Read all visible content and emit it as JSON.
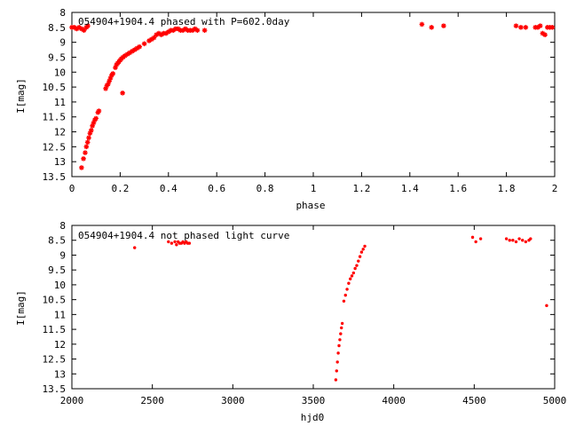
{
  "chart_data": [
    {
      "type": "scatter",
      "title": "054904+1904.4 phased with P=602.0day",
      "xlabel": "phase",
      "ylabel": "I[mag]",
      "xlim": [
        0,
        2
      ],
      "ylim": [
        13.5,
        8
      ],
      "y_inverted": true,
      "grid": false,
      "legend": "none",
      "marker": "asterisk",
      "color": "#ff0000",
      "xticks": [
        "0",
        "0.2",
        "0.4",
        "0.6",
        "0.8",
        "1",
        "1.2",
        "1.4",
        "1.6",
        "1.8",
        "2"
      ],
      "yticks": [
        "8",
        "8.5",
        "9",
        "9.5",
        "10",
        "10.5",
        "11",
        "11.5",
        "12",
        "12.5",
        "13",
        "13.5"
      ],
      "series": [
        {
          "x": [
            0.0,
            0.01,
            0.02,
            0.03,
            0.04,
            0.05,
            0.06,
            0.066,
            0.04,
            0.048,
            0.055,
            0.06,
            0.065,
            0.07,
            0.075,
            0.08,
            0.085,
            0.09,
            0.095,
            0.1,
            0.108,
            0.112,
            0.14,
            0.145,
            0.15,
            0.155,
            0.16,
            0.165,
            0.17,
            0.18,
            0.185,
            0.19,
            0.195,
            0.2,
            0.205,
            0.21,
            0.212,
            0.22,
            0.23,
            0.24,
            0.25,
            0.26,
            0.27,
            0.28,
            0.3,
            0.32,
            0.33,
            0.34,
            0.35,
            0.36,
            0.37,
            0.38,
            0.39,
            0.4,
            0.41,
            0.42,
            0.43,
            0.44,
            0.45,
            0.46,
            0.47,
            0.48,
            0.49,
            0.5,
            0.51,
            0.52,
            0.55,
            1.45,
            1.49,
            1.54,
            1.84,
            1.86,
            1.88,
            1.92,
            1.93,
            1.94,
            1.95,
            1.96,
            1.97,
            1.98,
            1.99
          ],
          "y": [
            8.5,
            8.5,
            8.55,
            8.5,
            8.55,
            8.6,
            8.5,
            8.45,
            13.2,
            12.9,
            12.7,
            12.5,
            12.35,
            12.2,
            12.05,
            11.95,
            11.8,
            11.7,
            11.6,
            11.55,
            11.35,
            11.3,
            10.55,
            10.45,
            10.4,
            10.3,
            10.2,
            10.1,
            10.05,
            9.85,
            9.75,
            9.7,
            9.65,
            9.6,
            9.55,
            10.7,
            9.5,
            9.45,
            9.4,
            9.35,
            9.3,
            9.25,
            9.2,
            9.15,
            9.05,
            8.95,
            8.9,
            8.85,
            8.75,
            8.7,
            8.75,
            8.7,
            8.7,
            8.65,
            8.6,
            8.6,
            8.55,
            8.55,
            8.6,
            8.6,
            8.55,
            8.6,
            8.6,
            8.6,
            8.55,
            8.6,
            8.6,
            8.4,
            8.5,
            8.45,
            8.45,
            8.5,
            8.5,
            8.5,
            8.5,
            8.45,
            8.7,
            8.75,
            8.5,
            8.5,
            8.5
          ]
        }
      ]
    },
    {
      "type": "scatter",
      "title": "054904+1904.4 not phased light curve",
      "xlabel": "hjd0",
      "ylabel": "I[mag]",
      "xlim": [
        2000,
        5000
      ],
      "ylim": [
        13.5,
        8
      ],
      "y_inverted": true,
      "grid": false,
      "legend": "none",
      "marker": "dot",
      "color": "#ff0000",
      "xticks": [
        "2000",
        "2500",
        "3000",
        "3500",
        "4000",
        "4500",
        "5000"
      ],
      "yticks": [
        "8",
        "8.5",
        "9",
        "9.5",
        "10",
        "10.5",
        "11",
        "11.5",
        "12",
        "12.5",
        "13",
        "13.5"
      ],
      "series": [
        {
          "x": [
            2390,
            2600,
            2620,
            2640,
            2650,
            2660,
            2670,
            2680,
            2690,
            2700,
            2710,
            2720,
            2730,
            3640,
            3645,
            3650,
            3655,
            3660,
            3665,
            3670,
            3675,
            3680,
            3690,
            3700,
            3710,
            3720,
            3730,
            3740,
            3750,
            3760,
            3770,
            3780,
            3790,
            3800,
            3810,
            3820,
            4490,
            4510,
            4540,
            4700,
            4720,
            4740,
            4760,
            4780,
            4800,
            4820,
            4840,
            4850,
            4950
          ],
          "y": [
            8.75,
            8.55,
            8.6,
            8.55,
            8.65,
            8.55,
            8.6,
            8.6,
            8.55,
            8.6,
            8.55,
            8.6,
            8.6,
            13.2,
            12.9,
            12.6,
            12.3,
            12.05,
            11.85,
            11.65,
            11.45,
            11.3,
            10.55,
            10.35,
            10.15,
            9.95,
            9.8,
            9.7,
            9.6,
            9.45,
            9.35,
            9.2,
            9.05,
            8.9,
            8.8,
            8.7,
            8.4,
            8.55,
            8.45,
            8.45,
            8.5,
            8.5,
            8.55,
            8.45,
            8.5,
            8.55,
            8.5,
            8.45,
            10.7
          ]
        }
      ]
    }
  ]
}
